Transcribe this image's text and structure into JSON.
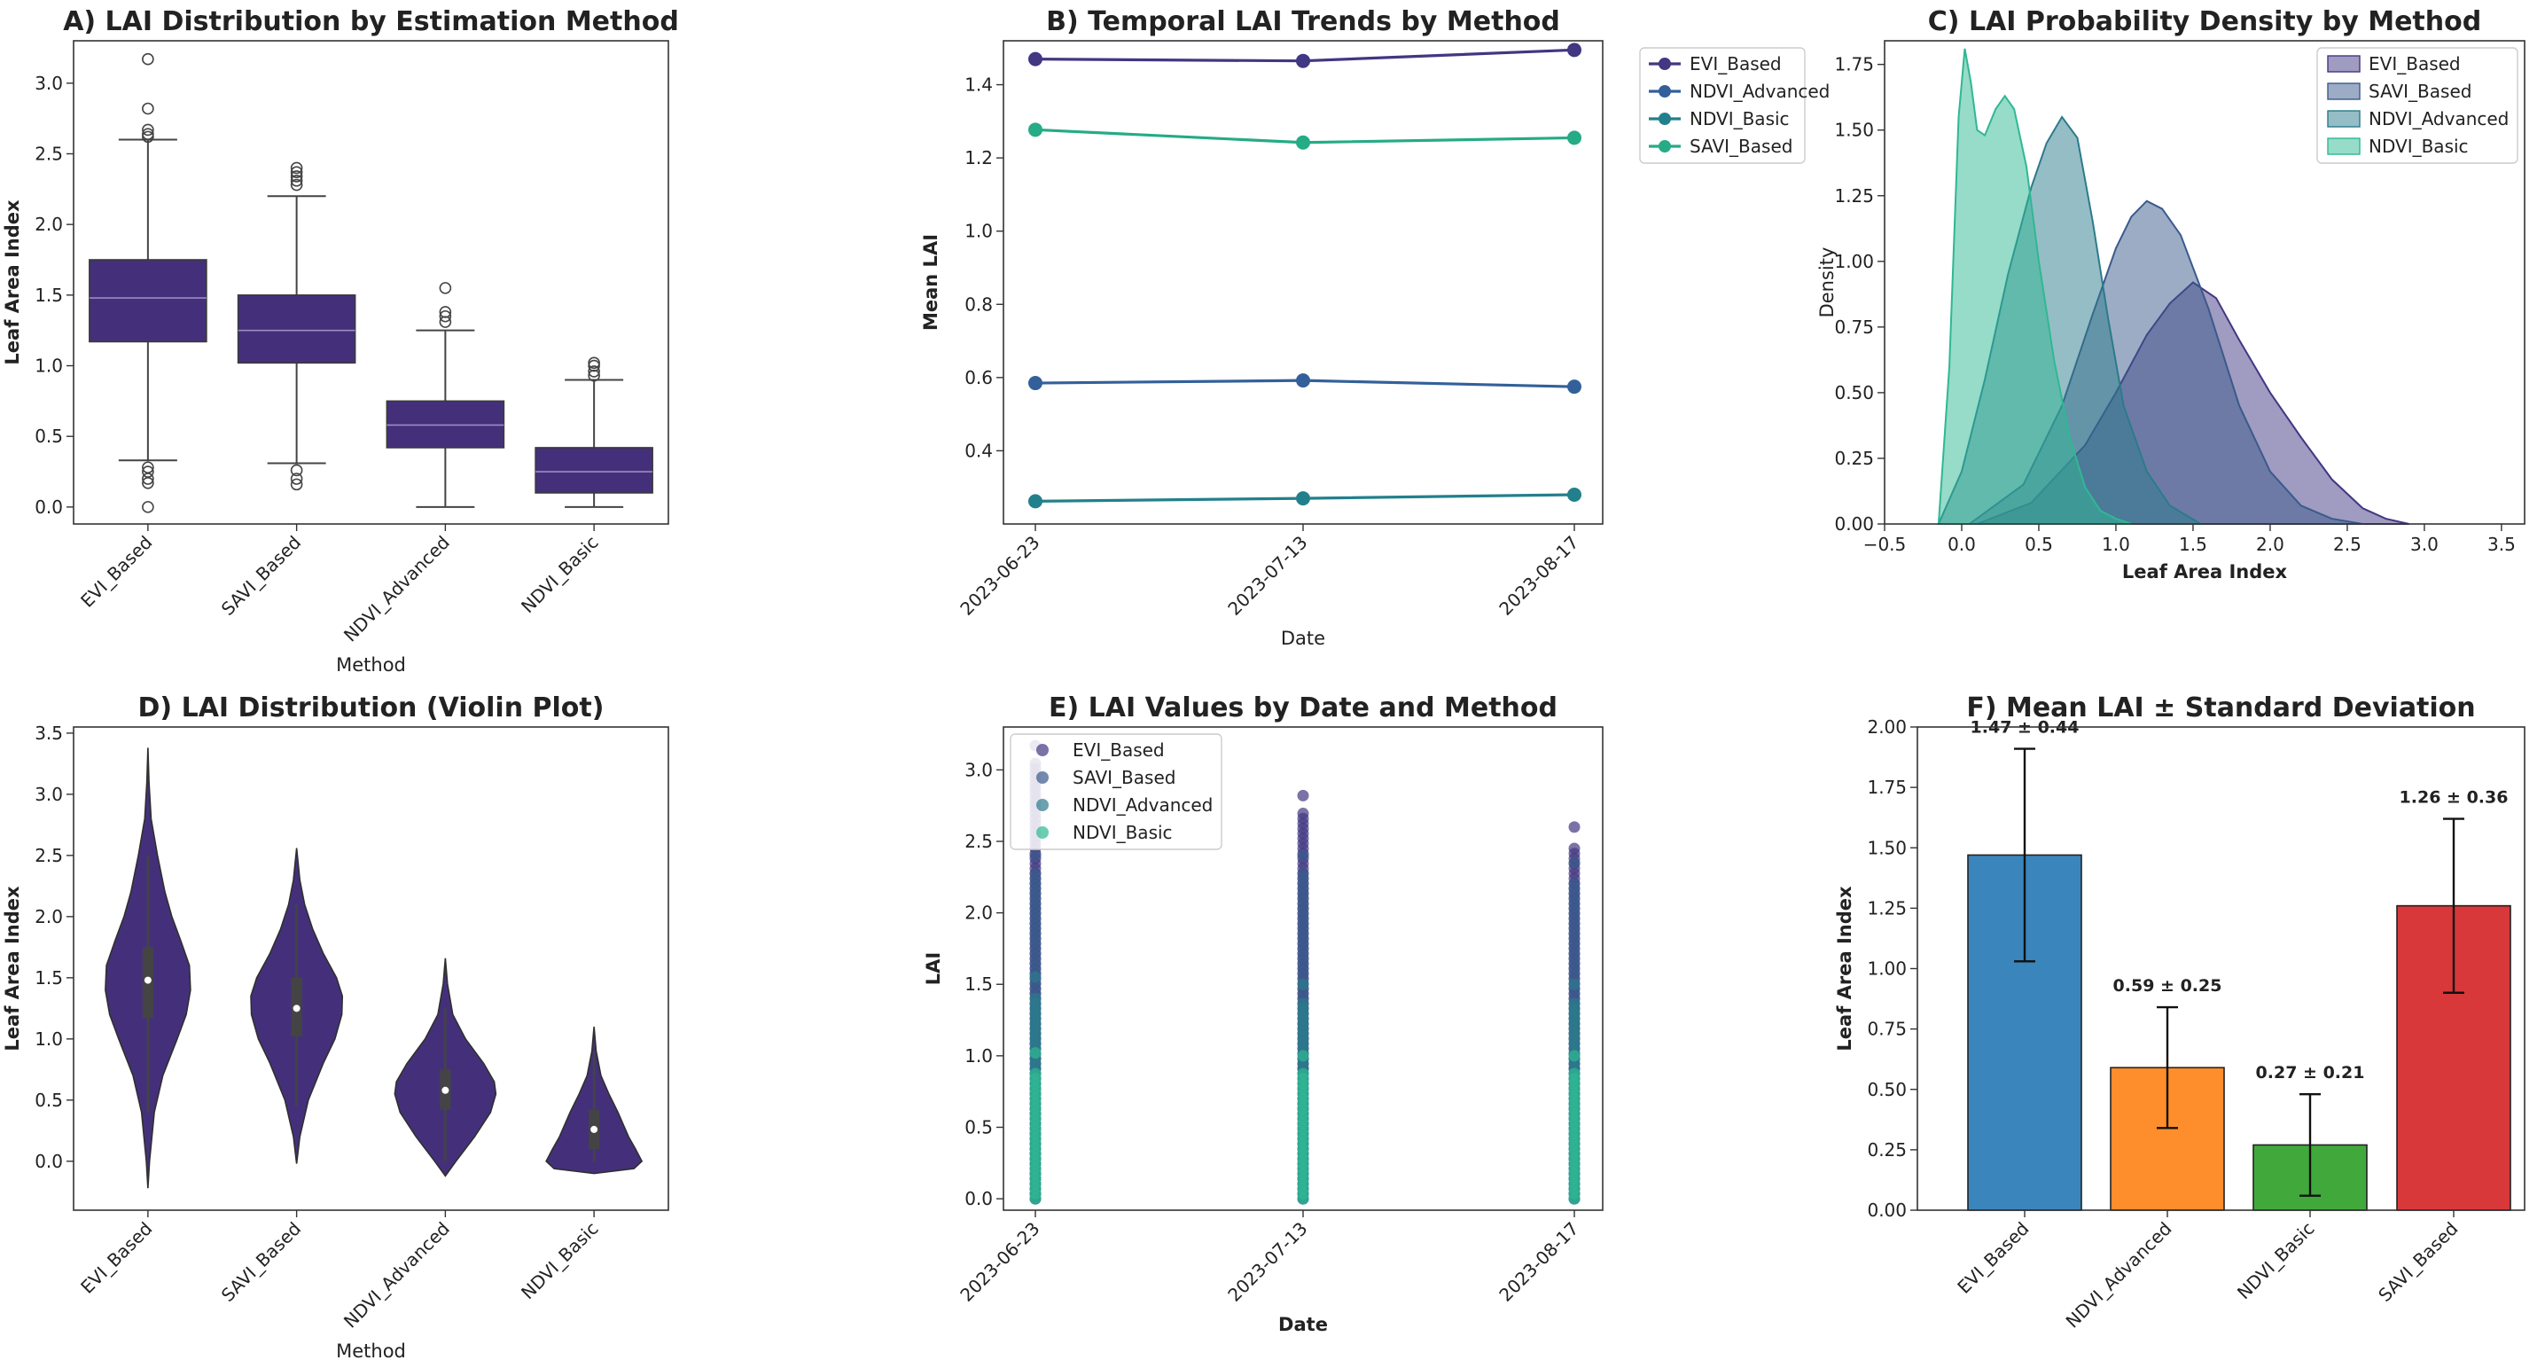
{
  "colors": {
    "purple": "#44307a",
    "evi": "#413782",
    "savi_based_kde": "#3a5a8c",
    "ndvi_adv_kde": "#2b7b8b",
    "ndvi_basic_kde": "#2fb893",
    "ndvi_adv_line": "#33609a",
    "ndvi_basic_line": "#22808c",
    "savi_line": "#25ab86",
    "bar_blue": "#3a85bc",
    "bar_orange": "#fe8e2b",
    "bar_green": "#41a93c",
    "bar_red": "#d9383b"
  },
  "chart_data": [
    {
      "id": "A",
      "type": "box",
      "title": "A) LAI Distribution by Estimation Method",
      "xlabel": "Method",
      "ylabel": "Leaf Area Index",
      "ylim": [
        -0.12,
        3.3
      ],
      "yticks": [
        0.0,
        0.5,
        1.0,
        1.5,
        2.0,
        2.5,
        3.0
      ],
      "ytick_labels": [
        "0.0",
        "0.5",
        "1.0",
        "1.5",
        "2.0",
        "2.5",
        "3.0"
      ],
      "categories": [
        "EVI_Based",
        "SAVI_Based",
        "NDVI_Advanced",
        "NDVI_Basic"
      ],
      "boxes": [
        {
          "q1": 1.17,
          "median": 1.48,
          "q3": 1.75,
          "whislo": 0.33,
          "whishi": 2.6,
          "fliers": [
            0.0,
            0.17,
            0.2,
            0.25,
            0.28,
            2.62,
            2.64,
            2.67,
            2.82,
            3.17
          ]
        },
        {
          "q1": 1.02,
          "median": 1.25,
          "q3": 1.5,
          "whislo": 0.31,
          "whishi": 2.2,
          "fliers": [
            0.16,
            0.2,
            0.26,
            2.28,
            2.31,
            2.34,
            2.37,
            2.4
          ]
        },
        {
          "q1": 0.42,
          "median": 0.58,
          "q3": 0.75,
          "whislo": 0.0,
          "whishi": 1.25,
          "fliers": [
            1.31,
            1.35,
            1.38,
            1.55
          ]
        },
        {
          "q1": 0.1,
          "median": 0.25,
          "q3": 0.42,
          "whislo": 0.0,
          "whishi": 0.9,
          "fliers": [
            0.93,
            0.96,
            1.0,
            1.02
          ]
        }
      ]
    },
    {
      "id": "B",
      "type": "line",
      "title": "B) Temporal LAI Trends by Method",
      "xlabel": "Date",
      "ylabel": "Mean LAI",
      "x": [
        "2023-06-23",
        "2023-07-13",
        "2023-08-17"
      ],
      "ylim": [
        0.2,
        1.52
      ],
      "yticks": [
        0.4,
        0.6,
        0.8,
        1.0,
        1.2,
        1.4
      ],
      "ytick_labels": [
        "0.4",
        "0.6",
        "0.8",
        "1.0",
        "1.2",
        "1.4"
      ],
      "series": [
        {
          "name": "EVI_Based",
          "values": [
            1.47,
            1.465,
            1.495
          ],
          "color": "#413782"
        },
        {
          "name": "NDVI_Advanced",
          "values": [
            0.585,
            0.592,
            0.575
          ],
          "color": "#33609a"
        },
        {
          "name": "NDVI_Basic",
          "values": [
            0.262,
            0.27,
            0.28
          ],
          "color": "#22808c"
        },
        {
          "name": "SAVI_Based",
          "values": [
            1.277,
            1.242,
            1.255
          ],
          "color": "#25ab86"
        }
      ],
      "legend": "outside-right"
    },
    {
      "id": "C",
      "type": "area",
      "title": "C) LAI Probability Density by Method",
      "xlabel": "Leaf Area Index",
      "ylabel": "Density",
      "xlim": [
        -0.5,
        3.65
      ],
      "ylim": [
        0,
        1.84
      ],
      "xticks": [
        -0.5,
        0.0,
        0.5,
        1.0,
        1.5,
        2.0,
        2.5,
        3.0,
        3.5
      ],
      "xtick_labels": [
        "−0.5",
        "0.0",
        "0.5",
        "1.0",
        "1.5",
        "2.0",
        "2.5",
        "3.0",
        "3.5"
      ],
      "yticks": [
        0.0,
        0.25,
        0.5,
        0.75,
        1.0,
        1.25,
        1.5,
        1.75
      ],
      "ytick_labels": [
        "0.00",
        "0.25",
        "0.50",
        "0.75",
        "1.00",
        "1.25",
        "1.50",
        "1.75"
      ],
      "series": [
        {
          "name": "EVI_Based",
          "color": "#413782",
          "x": [
            0.1,
            0.45,
            0.8,
            1.0,
            1.2,
            1.35,
            1.5,
            1.65,
            1.8,
            2.0,
            2.2,
            2.4,
            2.6,
            2.75,
            2.9
          ],
          "y": [
            0.0,
            0.08,
            0.3,
            0.5,
            0.72,
            0.84,
            0.92,
            0.86,
            0.7,
            0.5,
            0.33,
            0.17,
            0.06,
            0.02,
            0.0
          ]
        },
        {
          "name": "SAVI_Based",
          "color": "#3a5a8c",
          "x": [
            0.05,
            0.4,
            0.65,
            0.85,
            1.0,
            1.1,
            1.2,
            1.3,
            1.42,
            1.6,
            1.8,
            2.0,
            2.2,
            2.4,
            2.6
          ],
          "y": [
            0.0,
            0.15,
            0.45,
            0.8,
            1.05,
            1.17,
            1.23,
            1.2,
            1.1,
            0.82,
            0.45,
            0.2,
            0.07,
            0.02,
            0.0
          ]
        },
        {
          "name": "NDVI_Advanced",
          "color": "#2b7b8b",
          "x": [
            -0.15,
            0.0,
            0.15,
            0.3,
            0.45,
            0.55,
            0.65,
            0.75,
            0.85,
            0.95,
            1.05,
            1.2,
            1.35,
            1.55
          ],
          "y": [
            0.0,
            0.2,
            0.55,
            0.95,
            1.28,
            1.45,
            1.55,
            1.47,
            1.15,
            0.78,
            0.45,
            0.2,
            0.07,
            0.0
          ]
        },
        {
          "name": "NDVI_Basic",
          "color": "#2fb893",
          "x": [
            -0.15,
            -0.08,
            -0.02,
            0.02,
            0.06,
            0.1,
            0.15,
            0.22,
            0.28,
            0.34,
            0.42,
            0.5,
            0.6,
            0.7,
            0.8,
            0.9,
            1.0,
            1.1
          ],
          "y": [
            0.0,
            0.6,
            1.55,
            1.81,
            1.68,
            1.5,
            1.48,
            1.58,
            1.63,
            1.58,
            1.36,
            1.0,
            0.62,
            0.33,
            0.14,
            0.05,
            0.02,
            0.0
          ]
        }
      ],
      "legend_order": [
        "EVI_Based",
        "SAVI_Based",
        "NDVI_Advanced",
        "NDVI_Basic"
      ],
      "legend": "top-right"
    },
    {
      "id": "D",
      "type": "violin",
      "title": "D) LAI Distribution (Violin Plot)",
      "xlabel": "Method",
      "ylabel": "Leaf Area Index",
      "ylim": [
        -0.4,
        3.55
      ],
      "yticks": [
        0.0,
        0.5,
        1.0,
        1.5,
        2.0,
        2.5,
        3.0,
        3.5
      ],
      "ytick_labels": [
        "0.0",
        "0.5",
        "1.0",
        "1.5",
        "2.0",
        "2.5",
        "3.0",
        "3.5"
      ],
      "categories": [
        "EVI_Based",
        "SAVI_Based",
        "NDVI_Advanced",
        "NDVI_Basic"
      ],
      "violins": [
        {
          "y": [
            -0.22,
            0.0,
            0.4,
            0.7,
            1.0,
            1.2,
            1.4,
            1.6,
            1.8,
            2.0,
            2.2,
            2.5,
            2.8,
            3.1,
            3.38
          ],
          "w": [
            0.0,
            0.03,
            0.12,
            0.28,
            0.55,
            0.72,
            0.8,
            0.78,
            0.62,
            0.45,
            0.32,
            0.18,
            0.06,
            0.02,
            0.0
          ],
          "q1": 1.17,
          "median": 1.48,
          "q3": 1.75,
          "lo": 0.4,
          "hi": 2.5
        },
        {
          "y": [
            -0.02,
            0.2,
            0.5,
            0.8,
            1.0,
            1.2,
            1.35,
            1.5,
            1.7,
            1.9,
            2.1,
            2.3,
            2.56
          ],
          "w": [
            0.0,
            0.06,
            0.22,
            0.5,
            0.72,
            0.85,
            0.86,
            0.75,
            0.5,
            0.3,
            0.15,
            0.06,
            0.0
          ],
          "q1": 1.02,
          "median": 1.25,
          "q3": 1.5,
          "lo": 0.45,
          "hi": 2.1
        },
        {
          "y": [
            -0.12,
            0.0,
            0.2,
            0.4,
            0.55,
            0.65,
            0.8,
            1.0,
            1.2,
            1.45,
            1.66
          ],
          "w": [
            0.0,
            0.2,
            0.55,
            0.85,
            0.95,
            0.92,
            0.72,
            0.38,
            0.14,
            0.04,
            0.0
          ],
          "q1": 0.42,
          "median": 0.58,
          "q3": 0.75,
          "lo": 0.0,
          "hi": 1.25
        },
        {
          "y": [
            -0.1,
            -0.06,
            0.0,
            0.1,
            0.2,
            0.3,
            0.4,
            0.55,
            0.7,
            0.9,
            1.1
          ],
          "w": [
            0.0,
            0.75,
            0.9,
            0.78,
            0.65,
            0.55,
            0.45,
            0.28,
            0.13,
            0.04,
            0.0
          ],
          "q1": 0.1,
          "median": 0.26,
          "q3": 0.42,
          "lo": 0.0,
          "hi": 0.9
        }
      ]
    },
    {
      "id": "E",
      "type": "scatter",
      "title": "E) LAI Values by Date and Method",
      "xlabel": "Date",
      "ylabel": "LAI",
      "x": [
        "2023-06-23",
        "2023-07-13",
        "2023-08-17"
      ],
      "ylim": [
        -0.08,
        3.3
      ],
      "yticks": [
        0.0,
        0.5,
        1.0,
        1.5,
        2.0,
        2.5,
        3.0
      ],
      "ytick_labels": [
        "0.0",
        "0.5",
        "1.0",
        "1.5",
        "2.0",
        "2.5",
        "3.0"
      ],
      "series": [
        {
          "name": "EVI_Based",
          "color": "#413782",
          "ranges": [
            [
              0.0,
              3.17
            ],
            [
              0.0,
              2.82
            ],
            [
              0.0,
              2.6
            ]
          ]
        },
        {
          "name": "SAVI_Based",
          "color": "#3a5a8c",
          "ranges": [
            [
              0.0,
              2.4
            ],
            [
              0.0,
              2.4
            ],
            [
              0.0,
              2.35
            ]
          ]
        },
        {
          "name": "NDVI_Advanced",
          "color": "#2b7b8b",
          "ranges": [
            [
              0.0,
              1.55
            ],
            [
              0.0,
              1.5
            ],
            [
              0.0,
              1.5
            ]
          ]
        },
        {
          "name": "NDVI_Basic",
          "color": "#2fb893",
          "ranges": [
            [
              0.0,
              1.02
            ],
            [
              0.0,
              1.0
            ],
            [
              0.0,
              1.0
            ]
          ]
        }
      ],
      "legend": "top-left"
    },
    {
      "id": "F",
      "type": "bar",
      "title": "F) Mean LAI ± Standard Deviation",
      "ylabel": "Leaf Area Index",
      "categories": [
        "EVI_Based",
        "NDVI_Advanced",
        "NDVI_Basic",
        "SAVI_Based"
      ],
      "values": [
        1.47,
        0.59,
        0.27,
        1.26
      ],
      "errors": [
        0.44,
        0.25,
        0.21,
        0.36
      ],
      "labels": [
        "1.47 ± 0.44",
        "0.59 ± 0.25",
        "0.27 ± 0.21",
        "1.26 ± 0.36"
      ],
      "colors": [
        "#3a85bc",
        "#fe8e2b",
        "#41a93c",
        "#d9383b"
      ],
      "ylim": [
        0,
        2.0
      ],
      "yticks": [
        0.0,
        0.25,
        0.5,
        0.75,
        1.0,
        1.25,
        1.5,
        1.75,
        2.0
      ],
      "ytick_labels": [
        "0.00",
        "0.25",
        "0.50",
        "0.75",
        "1.00",
        "1.25",
        "1.50",
        "1.75",
        "2.00"
      ]
    }
  ]
}
